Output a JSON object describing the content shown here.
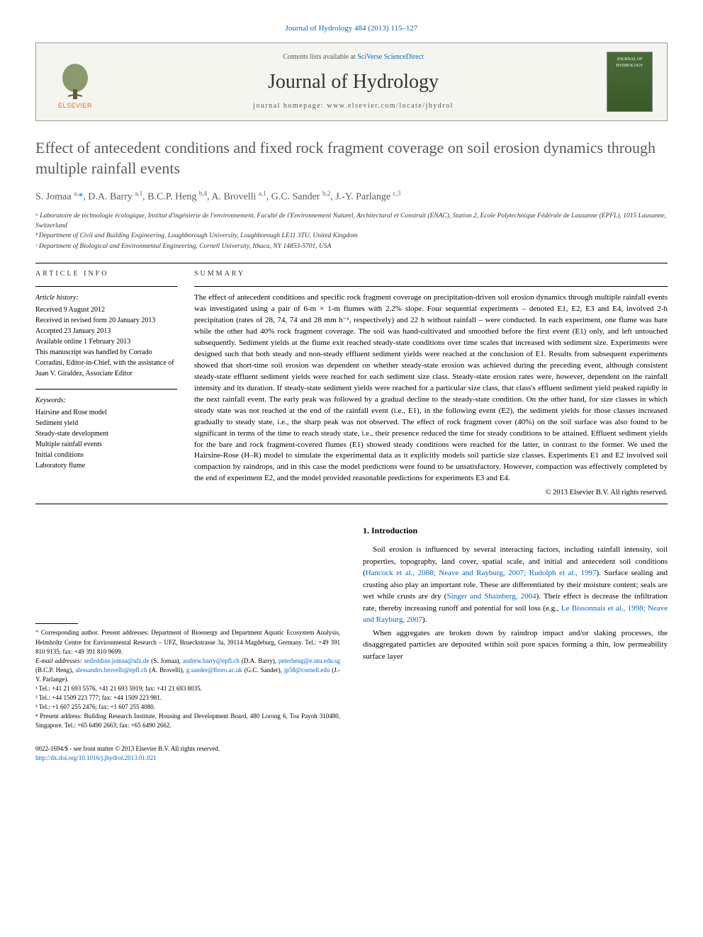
{
  "header": {
    "journal_ref_prefix": "Journal of Hydrology 484 (2013) 115–127",
    "contents_prefix": "Contents lists available at ",
    "contents_link": "SciVerse ScienceDirect",
    "journal_name": "Journal of Hydrology",
    "homepage_prefix": "journal homepage: ",
    "homepage_url": "www.elsevier.com/locate/jhydrol",
    "elsevier_label": "ELSEVIER",
    "cover_label": "JOURNAL OF HYDROLOGY"
  },
  "title": "Effect of antecedent conditions and fixed rock fragment coverage on soil erosion dynamics through multiple rainfall events",
  "authors_html": "S. Jomaa <sup>a,</sup><a href='#'>*</a>, D.A. Barry <sup>a,1</sup>, B.C.P. Heng <sup>b,4</sup>, A. Brovelli <sup>a,1</sup>, G.C. Sander <sup>b,2</sup>, J.-Y. Parlange <sup>c,3</sup>",
  "affiliations": [
    "ᵃ Laboratoire de technologie écologique, Institut d'ingénierie de l'environnement, Faculté de l'Environnement Naturel, Architectural et Construit (ENAC), Station 2, Ecole Polytechnique Fédérale de Lausanne (EPFL), 1015 Lausanne, Switzerland",
    "ᵇ Department of Civil and Building Engineering, Loughborough University, Loughborough LE11 3TU, United Kingdom",
    "ᶜ Department of Biological and Environmental Engineering, Cornell University, Ithaca, NY 14853-5701, USA"
  ],
  "article_info": {
    "heading": "ARTICLE INFO",
    "history_label": "Article history:",
    "history": [
      "Received 9 August 2012",
      "Received in revised form 20 January 2013",
      "Accepted 23 January 2013",
      "Available online 1 February 2013",
      "This manuscript was handled by Corrado Corradini, Editor-in-Chief, with the assistance of Juan V. Giraldez, Associate Editor"
    ],
    "keywords_label": "Keywords:",
    "keywords": [
      "Hairsine and Rose model",
      "Sediment yield",
      "Steady-state development",
      "Multiple rainfall events",
      "Initial conditions",
      "Laboratory flume"
    ]
  },
  "summary": {
    "heading": "SUMMARY",
    "text": "The effect of antecedent conditions and specific rock fragment coverage on precipitation-driven soil erosion dynamics through multiple rainfall events was investigated using a pair of 6-m × 1-m flumes with 2.2% slope. Four sequential experiments – denoted E1, E2, E3 and E4, involved 2-h precipitation (rates of 28, 74, 74 and 28 mm h⁻¹, respectively) and 22 h without rainfall – were conducted. In each experiment, one flume was bare while the other had 40% rock fragment coverage. The soil was hand-cultivated and smoothed before the first event (E1) only, and left untouched subsequently. Sediment yields at the flume exit reached steady-state conditions over time scales that increased with sediment size. Experiments were designed such that both steady and non-steady effluent sediment yields were reached at the conclusion of E1. Results from subsequent experiments showed that short-time soil erosion was dependent on whether steady-state erosion was achieved during the preceding event, although consistent steady-state effluent sediment yields were reached for each sediment size class. Steady-state erosion rates were, however, dependent on the rainfall intensity and its duration. If steady-state sediment yields were reached for a particular size class, that class's effluent sediment yield peaked rapidly in the next rainfall event. The early peak was followed by a gradual decline to the steady-state condition. On the other hand, for size classes in which steady state was not reached at the end of the rainfall event (i.e., E1), in the following event (E2), the sediment yields for those classes increased gradually to steady state, i.e., the sharp peak was not observed. The effect of rock fragment cover (40%) on the soil surface was also found to be significant in terms of the time to reach steady state, i.e., their presence reduced the time for steady conditions to be attained. Effluent sediment yields for the bare and rock fragment-covered flumes (E1) showed steady conditions were reached for the latter, in contrast to the former. We used the Hairsine-Rose (H–R) model to simulate the experimental data as it explicitly models soil particle size classes. Experiments E1 and E2 involved soil compaction by raindrops, and in this case the model predictions were found to be unsatisfactory. However, compaction was effectively completed by the end of experiment E2, and the model provided reasonable predictions for experiments E3 and E4.",
    "copyright": "© 2013 Elsevier B.V. All rights reserved."
  },
  "footnotes": {
    "corresponding_label": "* Corresponding author. Present addresses: Department of Bioenergy and Department Aquatic Ecosystem Analysis, Helmholtz Centre for Environmental Research – UFZ, Brueckstrasse 3a, 39114 Magdeburg, Germany. Tel.: +49 391 810 9135; fax: +49 391 810 9699.",
    "emails_label": "E-mail addresses:",
    "emails": [
      {
        "addr": "seifeddine.jomaa@ufz.de",
        "who": "(S. Jomaa),"
      },
      {
        "addr": "andrew.barry@epfl.ch",
        "who": "(D.A. Barry),"
      },
      {
        "addr": "peterheng@e.ntu.edu.sg",
        "who": "(B.C.P. Heng),"
      },
      {
        "addr": "alessandro.brovelli@epfl.ch",
        "who": "(A. Brovelli),"
      },
      {
        "addr": "g.sander@lboro.ac.uk",
        "who": "(G.C. Sander),"
      },
      {
        "addr": "jp58@cornell.edu",
        "who": "(J.-Y. Parlange)."
      }
    ],
    "numbered": [
      "¹ Tel.: +41 21 693 5576, +41 21 693 5919; fax: +41 21 693 8035.",
      "² Tel.: +44 1509 223 777; fax: +44 1509 223 981.",
      "³ Tel.: +1 607 255 2476; fax: +1 607 255 4080.",
      "⁴ Present address: Building Research Institute, Housing and Development Board, 480 Lorong 6, Toa Payoh 310480, Singapore. Tel.: +65 6490 2663; fax: +65 6490 2662."
    ]
  },
  "body": {
    "heading": "1. Introduction",
    "para1_pre": "Soil erosion is influenced by several interacting factors, including rainfall intensity, soil properties, topography, land cover, spatial scale, and initial and antecedent soil conditions (",
    "para1_link1": "Hancock et al., 2008; Neave and Rayburg, 2007; Rudolph et al., 1997",
    "para1_mid": "). Surface sealing and crusting also play an important role. These are differentiated by their moisture content; seals are wet while crusts are dry (",
    "para1_link2": "Singer and Shainberg, 2004",
    "para1_mid2": "). Their effect is decrease the infiltration rate, thereby increasing runoff and potential for soil loss (e.g., ",
    "para1_link3": "Le Bissonnais et al., 1998; Neave and Rayburg, 2007",
    "para1_end": ").",
    "para2": "When aggregates are broken down by raindrop impact and/or slaking processes, the disaggregated particles are deposited within soil pore spaces forming a thin, low permeability surface layer"
  },
  "footer": {
    "line1": "0022-1694/$ - see front matter © 2013 Elsevier B.V. All rights reserved.",
    "line2_url": "http://dx.doi.org/10.1016/j.jhydrol.2013.01.021"
  }
}
